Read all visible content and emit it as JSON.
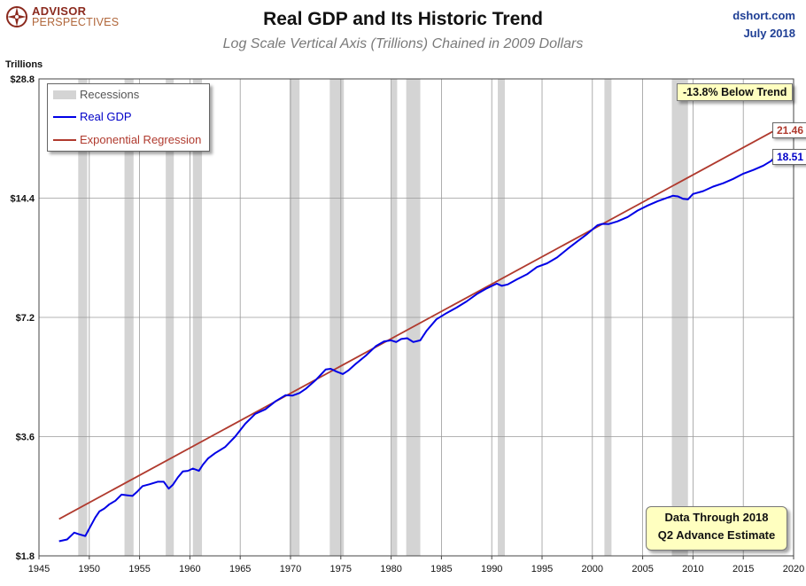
{
  "logo": {
    "line1": "ADVISOR",
    "line2": "PERSPECTIVES"
  },
  "header": {
    "title": "Real GDP and Its Historic Trend",
    "subtitle": "Log Scale Vertical Axis (Trillions) Chained in 2009 Dollars",
    "source": "dshort.com",
    "date": "July 2018"
  },
  "colors": {
    "gdp": "#0000e6",
    "trend": "#b03a2e",
    "recession": "#d4d4d4",
    "note_bg": "#ffffc0"
  },
  "legend": {
    "recessions": "Recessions",
    "gdp": "Real GDP",
    "trend": "Exponential Regression"
  },
  "notes": {
    "below_trend": "-13.8% Below Trend",
    "data_line1": "Data Through 2018",
    "data_line2": "Q2 Advance Estimate"
  },
  "chart_data": {
    "type": "line",
    "title": "Real GDP and Its Historic Trend",
    "subtitle": "Log Scale Vertical Axis (Trillions) Chained in 2009 Dollars",
    "ylabel": "Trillions",
    "yscale": "log",
    "ylim": [
      1.8,
      28.8
    ],
    "xlim": [
      1945,
      2020
    ],
    "y_ticks": [
      1.8,
      3.6,
      7.2,
      14.4,
      28.8
    ],
    "y_tick_labels": [
      "$1.8",
      "$3.6",
      "$7.2",
      "$14.4",
      "$28.8"
    ],
    "x_ticks": [
      1945,
      1950,
      1955,
      1960,
      1965,
      1970,
      1975,
      1980,
      1985,
      1990,
      1995,
      2000,
      2005,
      2010,
      2015,
      2020
    ],
    "grid": true,
    "legend_position": "top-left",
    "recessions": [
      [
        1948.9,
        1949.8
      ],
      [
        1953.5,
        1954.4
      ],
      [
        1957.6,
        1958.4
      ],
      [
        1960.3,
        1961.2
      ],
      [
        1969.9,
        1970.9
      ],
      [
        1973.9,
        1975.3
      ],
      [
        1980.0,
        1980.6
      ],
      [
        1981.5,
        1982.9
      ],
      [
        1990.6,
        1991.3
      ],
      [
        2001.2,
        2001.9
      ],
      [
        2007.9,
        2009.5
      ]
    ],
    "series": [
      {
        "name": "Real GDP",
        "x": [
          1947.0,
          1947.8,
          1948.5,
          1949.0,
          1949.6,
          1950.0,
          1950.6,
          1951.0,
          1951.5,
          1952.0,
          1952.6,
          1953.2,
          1953.8,
          1954.3,
          1954.8,
          1955.3,
          1956.0,
          1956.8,
          1957.4,
          1957.9,
          1958.3,
          1958.8,
          1959.3,
          1959.8,
          1960.3,
          1960.9,
          1961.3,
          1961.8,
          1962.5,
          1963.5,
          1964.5,
          1965.5,
          1966.5,
          1967.5,
          1968.5,
          1969.5,
          1970.2,
          1970.9,
          1971.5,
          1972.5,
          1973.5,
          1974.0,
          1974.6,
          1975.2,
          1975.8,
          1976.5,
          1977.5,
          1978.5,
          1979.3,
          1980.0,
          1980.5,
          1981.0,
          1981.6,
          1982.2,
          1982.9,
          1983.5,
          1984.5,
          1985.5,
          1986.5,
          1987.5,
          1988.5,
          1989.5,
          1990.5,
          1991.0,
          1991.6,
          1992.5,
          1993.5,
          1994.5,
          1995.5,
          1996.5,
          1997.5,
          1998.5,
          1999.5,
          2000.5,
          2001.0,
          2001.6,
          2002.5,
          2003.5,
          2004.5,
          2005.5,
          2006.5,
          2007.5,
          2008.0,
          2008.5,
          2009.0,
          2009.5,
          2010.0,
          2011.0,
          2012.0,
          2013.0,
          2014.0,
          2015.0,
          2016.0,
          2017.0,
          2017.8,
          2018.3
        ],
        "values": [
          1.96,
          1.98,
          2.06,
          2.04,
          2.02,
          2.11,
          2.25,
          2.33,
          2.37,
          2.43,
          2.48,
          2.57,
          2.56,
          2.55,
          2.62,
          2.7,
          2.73,
          2.77,
          2.77,
          2.66,
          2.72,
          2.84,
          2.94,
          2.95,
          2.99,
          2.95,
          3.06,
          3.17,
          3.27,
          3.39,
          3.6,
          3.88,
          4.11,
          4.22,
          4.42,
          4.58,
          4.57,
          4.64,
          4.75,
          5.0,
          5.32,
          5.34,
          5.25,
          5.18,
          5.3,
          5.5,
          5.77,
          6.1,
          6.26,
          6.3,
          6.24,
          6.35,
          6.38,
          6.24,
          6.3,
          6.65,
          7.12,
          7.38,
          7.62,
          7.9,
          8.24,
          8.52,
          8.76,
          8.65,
          8.72,
          8.98,
          9.25,
          9.65,
          9.86,
          10.2,
          10.7,
          11.2,
          11.7,
          12.3,
          12.4,
          12.38,
          12.58,
          12.9,
          13.4,
          13.8,
          14.15,
          14.45,
          14.6,
          14.55,
          14.35,
          14.3,
          14.75,
          15.0,
          15.4,
          15.7,
          16.1,
          16.6,
          16.96,
          17.4,
          17.9,
          18.51
        ]
      },
      {
        "name": "Exponential Regression",
        "x": [
          1947.0,
          2018.3
        ],
        "values": [
          2.23,
          21.46
        ]
      }
    ],
    "end_labels": {
      "trend": "21.46",
      "gdp": "18.51"
    }
  }
}
